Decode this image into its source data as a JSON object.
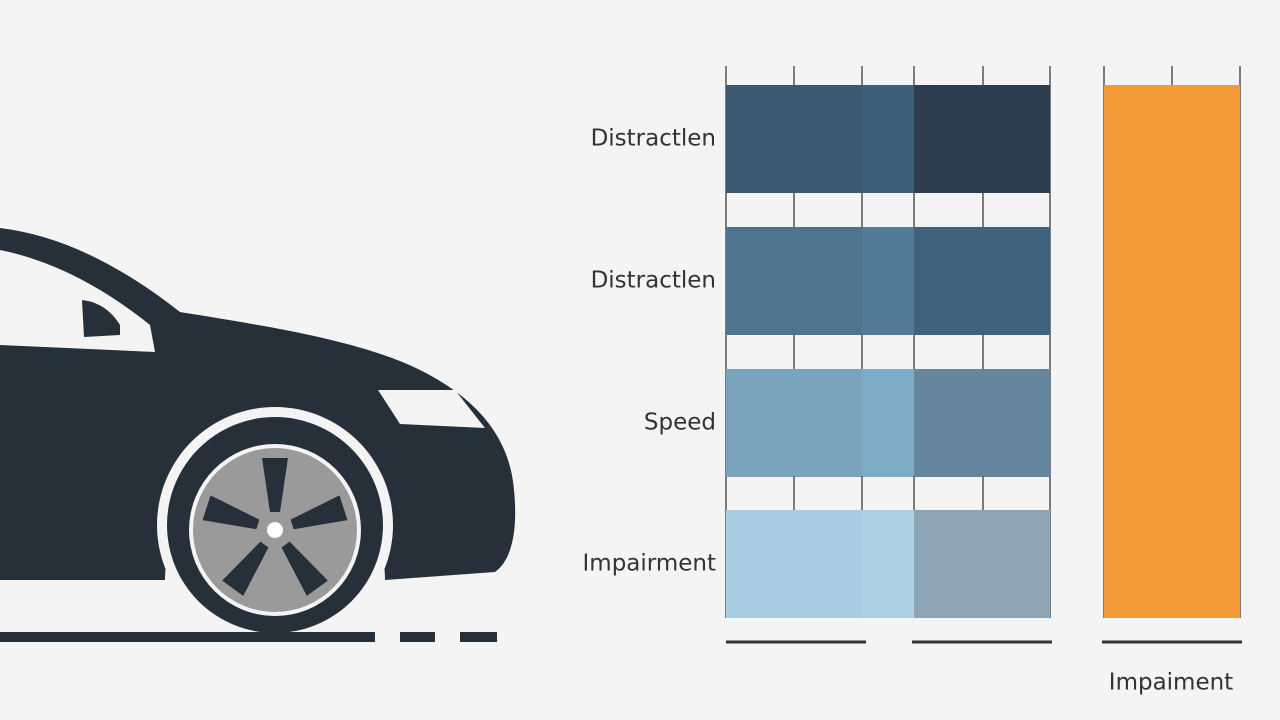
{
  "rows": [
    {
      "label": "Distractlen"
    },
    {
      "label": "Distractlen"
    },
    {
      "label": "Speed"
    },
    {
      "label": "Impairment"
    }
  ],
  "side_label": "Impaiment"
}
